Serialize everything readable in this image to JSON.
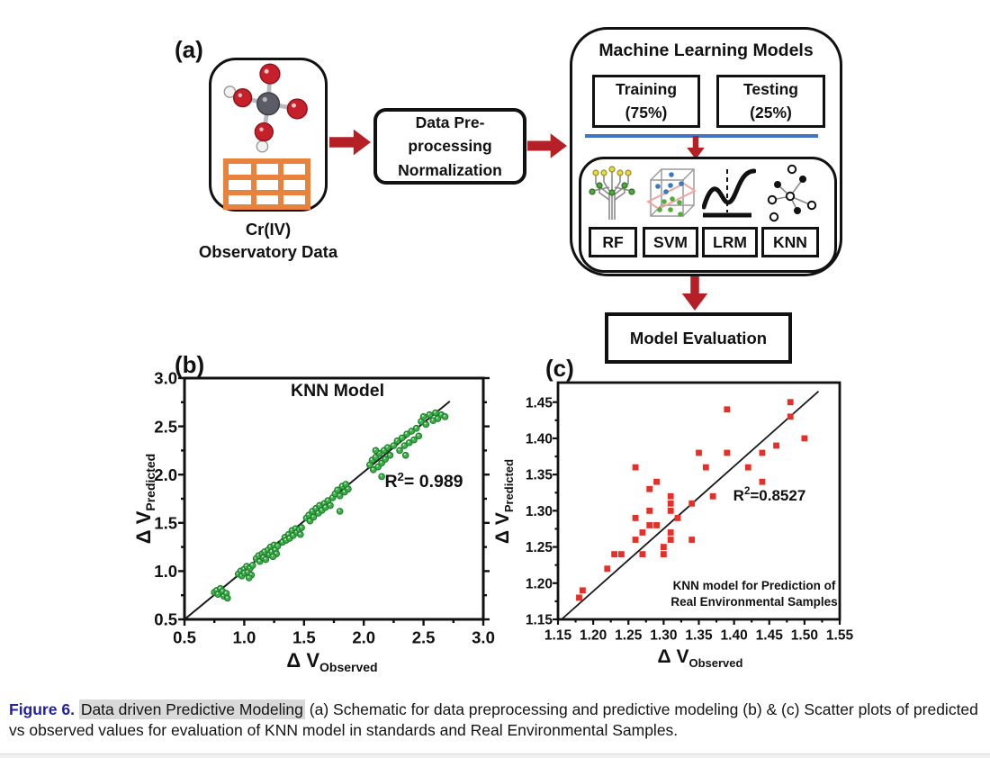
{
  "figure": {
    "panel_a_label": "(a)",
    "panel_b_label": "(b)",
    "panel_c_label": "(c)"
  },
  "diagram": {
    "source": {
      "line1": "Cr(IV)",
      "line2": "Observatory Data"
    },
    "preprocess": {
      "line1": "Data Pre-",
      "line2": "processing",
      "line3": "Normalization"
    },
    "ml": {
      "title": "Machine Learning Models",
      "training": {
        "line1": "Training",
        "line2": "(75%)"
      },
      "testing": {
        "line1": "Testing",
        "line2": "(25%)"
      },
      "models": {
        "rf": "RF",
        "svm": "SVM",
        "lrm": "LRM",
        "knn": "KNN"
      }
    },
    "evaluation": "Model Evaluation"
  },
  "icons": {
    "molecule-icon": "ball-and-stick chromium molecule",
    "data-table-icon": "orange 3x3 data grid",
    "rf-icon": "random forest tree",
    "svm-icon": "cube with separating plane and class dots",
    "lrm-icon": "regression curve with dashed axis",
    "knn-icon": "nearest-neighbour star graph",
    "arrow-right-icon": "red right arrow",
    "arrow-down-icon": "red down arrow"
  },
  "colors": {
    "arrow_red": "#b42025",
    "divider_blue": "#4472c4",
    "scatter_green_fill": "#3fb049",
    "scatter_green_edge": "#1e7e2e",
    "scatter_red": "#e43028",
    "grid_orange": "#e8823c",
    "caption_blue": "#22219f",
    "highlight_gray": "#d9d9d9",
    "fit_line": "#1a1a1a"
  },
  "chart_data": [
    {
      "type": "scatter",
      "panel": "b",
      "title": "KNN Model",
      "marker": "circle",
      "xlabel": {
        "main": "Δ V",
        "sub": "Observed"
      },
      "ylabel": {
        "main": "Δ V",
        "sub": "Predicted"
      },
      "r2": {
        "base": "R",
        "sup": "2",
        "rest": "= 0.989"
      },
      "xlim": [
        0.5,
        3.0
      ],
      "ylim": [
        0.5,
        3.0
      ],
      "x_ticks": [
        "0.5",
        "1.0",
        "1.5",
        "2.0",
        "2.5",
        "3.0"
      ],
      "y_ticks": [
        "0.5",
        "1.0",
        "1.5",
        "2.0",
        "2.5",
        "3.0"
      ],
      "fit_line": {
        "x1": 0.5,
        "y1": 0.5,
        "x2": 2.72,
        "y2": 2.76
      },
      "points": [
        [
          0.75,
          0.78
        ],
        [
          0.77,
          0.8
        ],
        [
          0.78,
          0.76
        ],
        [
          0.8,
          0.82
        ],
        [
          0.82,
          0.79
        ],
        [
          0.83,
          0.74
        ],
        [
          0.85,
          0.77
        ],
        [
          0.86,
          0.72
        ],
        [
          0.95,
          0.97
        ],
        [
          0.97,
          1.0
        ],
        [
          0.98,
          0.95
        ],
        [
          1.0,
          1.02
        ],
        [
          1.0,
          0.98
        ],
        [
          1.02,
          1.05
        ],
        [
          1.03,
          0.99
        ],
        [
          1.05,
          1.03
        ],
        [
          1.06,
          0.96
        ],
        [
          1.07,
          1.06
        ],
        [
          1.04,
          0.93
        ],
        [
          1.1,
          1.13
        ],
        [
          1.12,
          1.16
        ],
        [
          1.13,
          1.1
        ],
        [
          1.15,
          1.18
        ],
        [
          1.16,
          1.14
        ],
        [
          1.17,
          1.2
        ],
        [
          1.18,
          1.12
        ],
        [
          1.2,
          1.22
        ],
        [
          1.21,
          1.17
        ],
        [
          1.22,
          1.25
        ],
        [
          1.23,
          1.2
        ],
        [
          1.25,
          1.27
        ],
        [
          1.26,
          1.22
        ],
        [
          1.27,
          1.18
        ],
        [
          1.28,
          1.26
        ],
        [
          1.24,
          1.15
        ],
        [
          1.32,
          1.3
        ],
        [
          1.34,
          1.35
        ],
        [
          1.35,
          1.32
        ],
        [
          1.37,
          1.38
        ],
        [
          1.38,
          1.34
        ],
        [
          1.4,
          1.42
        ],
        [
          1.41,
          1.37
        ],
        [
          1.43,
          1.44
        ],
        [
          1.44,
          1.4
        ],
        [
          1.46,
          1.43
        ],
        [
          1.47,
          1.38
        ],
        [
          1.48,
          1.45
        ],
        [
          1.52,
          1.55
        ],
        [
          1.54,
          1.58
        ],
        [
          1.55,
          1.52
        ],
        [
          1.57,
          1.62
        ],
        [
          1.58,
          1.56
        ],
        [
          1.6,
          1.65
        ],
        [
          1.62,
          1.6
        ],
        [
          1.63,
          1.68
        ],
        [
          1.65,
          1.63
        ],
        [
          1.67,
          1.7
        ],
        [
          1.68,
          1.66
        ],
        [
          1.7,
          1.73
        ],
        [
          1.72,
          1.68
        ],
        [
          1.74,
          1.76
        ],
        [
          1.76,
          1.8
        ],
        [
          1.78,
          1.84
        ],
        [
          1.8,
          1.78
        ],
        [
          1.82,
          1.88
        ],
        [
          1.84,
          1.82
        ],
        [
          1.85,
          1.9
        ],
        [
          1.87,
          1.85
        ],
        [
          1.8,
          1.62
        ],
        [
          2.05,
          2.1
        ],
        [
          2.07,
          2.15
        ],
        [
          2.08,
          2.05
        ],
        [
          2.1,
          2.18
        ],
        [
          2.12,
          2.08
        ],
        [
          2.13,
          2.22
        ],
        [
          2.15,
          2.12
        ],
        [
          2.17,
          2.25
        ],
        [
          2.18,
          2.16
        ],
        [
          2.2,
          2.28
        ],
        [
          2.22,
          2.2
        ],
        [
          2.15,
          1.98
        ],
        [
          2.1,
          2.25
        ],
        [
          2.25,
          2.3
        ],
        [
          2.28,
          2.35
        ],
        [
          2.3,
          2.25
        ],
        [
          2.32,
          2.38
        ],
        [
          2.34,
          2.3
        ],
        [
          2.36,
          2.42
        ],
        [
          2.38,
          2.33
        ],
        [
          2.4,
          2.45
        ],
        [
          2.42,
          2.36
        ],
        [
          2.44,
          2.48
        ],
        [
          2.46,
          2.4
        ],
        [
          2.35,
          2.2
        ],
        [
          2.48,
          2.55
        ],
        [
          2.5,
          2.6
        ],
        [
          2.52,
          2.52
        ],
        [
          2.55,
          2.62
        ],
        [
          2.58,
          2.56
        ],
        [
          2.6,
          2.64
        ],
        [
          2.62,
          2.58
        ],
        [
          2.65,
          2.62
        ],
        [
          2.68,
          2.6
        ]
      ]
    },
    {
      "type": "scatter",
      "panel": "c",
      "title": "",
      "marker": "square",
      "xlabel": {
        "main": "Δ V",
        "sub": "Observed"
      },
      "ylabel": {
        "main": "Δ V",
        "sub": "Predicted"
      },
      "r2": {
        "base": "R",
        "sup": "2",
        "rest": "=0.8527"
      },
      "annotation": {
        "line1": "KNN model for Prediction of",
        "line2": "Real Environmental Samples"
      },
      "xlim": [
        1.15,
        1.55
      ],
      "ylim": [
        1.15,
        1.477
      ],
      "x_ticks": [
        "1.15",
        "1.20",
        "1.25",
        "1.30",
        "1.35",
        "1.40",
        "1.45",
        "1.50",
        "1.55"
      ],
      "y_ticks": [
        "1.15",
        "1.20",
        "1.25",
        "1.30",
        "1.35",
        "1.40",
        "1.45"
      ],
      "fit_line": {
        "x1": 1.155,
        "y1": 1.15,
        "x2": 1.52,
        "y2": 1.465
      },
      "points": [
        [
          1.18,
          1.18
        ],
        [
          1.185,
          1.19
        ],
        [
          1.22,
          1.22
        ],
        [
          1.23,
          1.24
        ],
        [
          1.24,
          1.24
        ],
        [
          1.26,
          1.26
        ],
        [
          1.26,
          1.29
        ],
        [
          1.26,
          1.36
        ],
        [
          1.27,
          1.24
        ],
        [
          1.27,
          1.27
        ],
        [
          1.28,
          1.28
        ],
        [
          1.28,
          1.3
        ],
        [
          1.28,
          1.33
        ],
        [
          1.29,
          1.28
        ],
        [
          1.29,
          1.34
        ],
        [
          1.3,
          1.24
        ],
        [
          1.3,
          1.25
        ],
        [
          1.31,
          1.26
        ],
        [
          1.31,
          1.27
        ],
        [
          1.31,
          1.3
        ],
        [
          1.31,
          1.31
        ],
        [
          1.31,
          1.32
        ],
        [
          1.32,
          1.29
        ],
        [
          1.34,
          1.26
        ],
        [
          1.34,
          1.31
        ],
        [
          1.35,
          1.38
        ],
        [
          1.36,
          1.36
        ],
        [
          1.37,
          1.32
        ],
        [
          1.39,
          1.44
        ],
        [
          1.39,
          1.38
        ],
        [
          1.42,
          1.36
        ],
        [
          1.44,
          1.38
        ],
        [
          1.44,
          1.34
        ],
        [
          1.46,
          1.39
        ],
        [
          1.48,
          1.45
        ],
        [
          1.48,
          1.43
        ],
        [
          1.5,
          1.4
        ]
      ]
    }
  ],
  "caption": {
    "label": "Figure 6.",
    "highlighted": "Data driven Predictive Modeling",
    "rest": "(a) Schematic for data preprocessing and predictive modeling (b) & (c) Scatter plots of predicted vs observed values for evaluation of KNN model in standards and Real Environmental Samples."
  }
}
